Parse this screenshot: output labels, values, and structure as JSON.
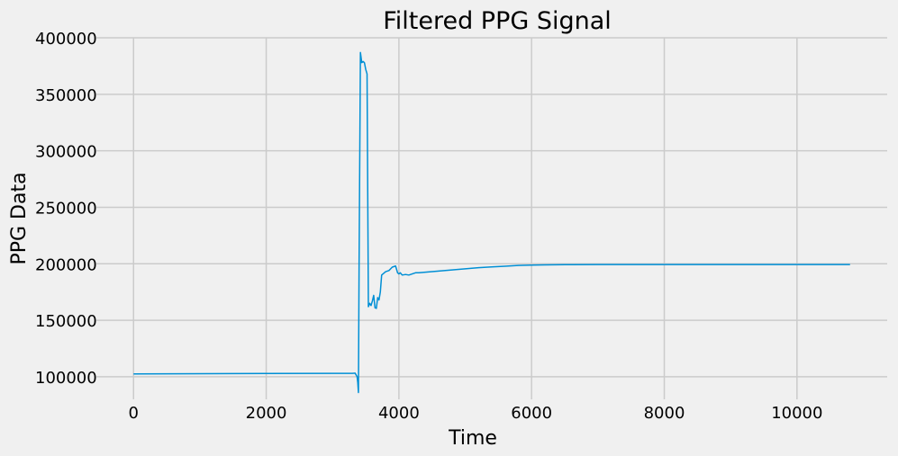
{
  "chart_data": {
    "type": "line",
    "title": "Filtered PPG Signal",
    "xlabel": "Time",
    "ylabel": "PPG Data",
    "xlim": [
      -560,
      11360
    ],
    "ylim": [
      80000,
      400000
    ],
    "xticks": [
      0,
      2000,
      4000,
      6000,
      8000,
      10000
    ],
    "yticks": [
      100000,
      150000,
      200000,
      250000,
      300000,
      350000,
      400000
    ],
    "grid": true,
    "legend": "none",
    "colors": {
      "background": "#f0f0f0",
      "line": "#008fd5",
      "grid": "#cbcbcb"
    },
    "series": [
      {
        "color": "#008fd5",
        "x": [
          0,
          1000,
          2000,
          3000,
          3300,
          3340,
          3370,
          3380,
          3390,
          3400,
          3420,
          3440,
          3460,
          3480,
          3500,
          3520,
          3540,
          3560,
          3580,
          3600,
          3620,
          3640,
          3660,
          3680,
          3700,
          3720,
          3740,
          3760,
          3780,
          3800,
          3850,
          3900,
          3950,
          3980,
          4000,
          4020,
          4050,
          4100,
          4150,
          4200,
          4250,
          4300,
          4400,
          4500,
          4600,
          4700,
          4800,
          4900,
          5000,
          5200,
          5400,
          5600,
          5800,
          6000,
          6200,
          6500,
          7000,
          7500,
          8000,
          8500,
          9000,
          9500,
          10000,
          10500,
          10800
        ],
        "y": [
          102500,
          102700,
          102900,
          103000,
          103000,
          103200,
          100000,
          95000,
          86000,
          200000,
          387000,
          378000,
          379000,
          378000,
          372000,
          368000,
          162000,
          165000,
          163000,
          167000,
          172000,
          161000,
          160500,
          170000,
          168000,
          175000,
          190000,
          191000,
          192000,
          193000,
          194000,
          197000,
          198000,
          192000,
          191000,
          192000,
          190000,
          190500,
          190000,
          191000,
          192000,
          192000,
          192500,
          193000,
          193500,
          194000,
          194500,
          195000,
          195500,
          196500,
          197200,
          197800,
          198500,
          198800,
          199000,
          199200,
          199300,
          199300,
          199300,
          199300,
          199300,
          199300,
          199300,
          199300,
          199300
        ]
      }
    ]
  }
}
